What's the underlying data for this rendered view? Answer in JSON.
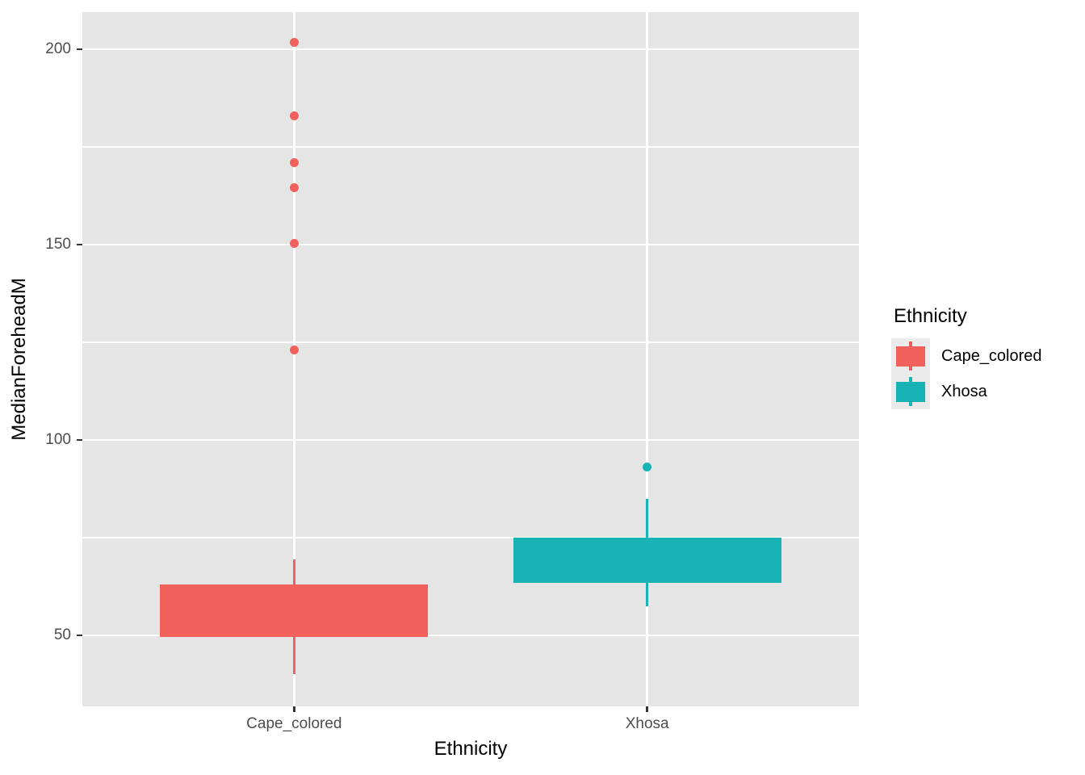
{
  "chart_data": {
    "type": "boxplot",
    "title": "",
    "xlabel": "Ethnicity",
    "ylabel": "MedianForeheadM",
    "categories": [
      "Cape_colored",
      "Xhosa"
    ],
    "series": [
      {
        "name": "Cape_colored",
        "color": "#F2605B",
        "whisker_low": 40,
        "q1": 49.5,
        "median": null,
        "q3": 63,
        "whisker_high": 69.5,
        "outliers": [
          123,
          150.3,
          164.5,
          171,
          183,
          201.7
        ]
      },
      {
        "name": "Xhosa",
        "color": "#1AB3B5",
        "whisker_low": 57.5,
        "q1": 63.5,
        "median": null,
        "q3": 75,
        "whisker_high": 85,
        "outliers": [
          93
        ]
      }
    ],
    "y_axis": {
      "ticks": [
        50,
        100,
        150,
        200
      ],
      "minor_ticks": [
        75,
        125,
        175
      ],
      "domain": [
        31.8,
        209.5
      ]
    },
    "x_positions": [
      0.2727,
      0.7273
    ],
    "box_width_frac": 0.345,
    "grid": "on",
    "legend_position": "right",
    "panel_bg": "#E5E5E5",
    "gridline_color": "#FFFFFF",
    "axis_text_color": "#4D4D4D",
    "tick_color": "#333333",
    "legend": {
      "title": "Ethnicity",
      "key_bg": "#EBEBEB",
      "items": [
        {
          "label": "Cape_colored",
          "color": "#F2605B"
        },
        {
          "label": "Xhosa",
          "color": "#1AB3B5"
        }
      ]
    }
  }
}
